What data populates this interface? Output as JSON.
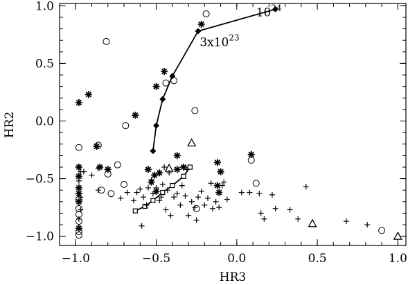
{
  "chart_data": {
    "type": "scatter",
    "xlabel": "HR3",
    "ylabel": "HR2",
    "xlim": [
      -1.1,
      1.05
    ],
    "ylim": [
      -1.08,
      1.02
    ],
    "grid": false,
    "xticks": [
      -1.0,
      -0.5,
      0.0,
      0.5,
      1.0
    ],
    "xtick_labels": [
      "−1.0",
      "−0.5",
      "0.0",
      "0.5",
      "1.0"
    ],
    "yticks": [
      -1.0,
      -0.5,
      0.0,
      0.5,
      1.0
    ],
    "ytick_labels": [
      "−1.0",
      "−0.5",
      "0.0",
      "0.5",
      "1.0"
    ],
    "annotations": [
      {
        "text": "3x10",
        "sup": "23",
        "x": -0.23,
        "y": 0.65
      },
      {
        "text": "10",
        "sup": "24",
        "x": 0.12,
        "y": 0.91
      }
    ],
    "series": [
      {
        "marker": "diamond-line",
        "values": [
          {
            "x": -0.52,
            "y": -0.26
          },
          {
            "x": -0.5,
            "y": -0.04
          },
          {
            "x": -0.46,
            "y": 0.19
          },
          {
            "x": -0.4,
            "y": 0.39
          },
          {
            "x": -0.24,
            "y": 0.78
          },
          {
            "x": 0.24,
            "y": 0.97
          }
        ]
      },
      {
        "marker": "square-line",
        "values": [
          {
            "x": -0.63,
            "y": -0.78
          },
          {
            "x": -0.57,
            "y": -0.74
          },
          {
            "x": -0.52,
            "y": -0.69
          },
          {
            "x": -0.46,
            "y": -0.62
          },
          {
            "x": -0.4,
            "y": -0.56
          },
          {
            "x": -0.33,
            "y": -0.48
          },
          {
            "x": -0.29,
            "y": -0.4
          }
        ]
      },
      {
        "marker": "asterisk",
        "values": [
          {
            "x": -0.98,
            "y": 0.16
          },
          {
            "x": -0.92,
            "y": 0.23
          },
          {
            "x": -0.5,
            "y": 0.3
          },
          {
            "x": -0.45,
            "y": 0.43
          },
          {
            "x": -0.22,
            "y": 0.84
          },
          {
            "x": -0.63,
            "y": 0.05
          },
          {
            "x": -0.87,
            "y": -0.22
          },
          {
            "x": -0.98,
            "y": -0.4
          },
          {
            "x": -0.98,
            "y": -0.48
          },
          {
            "x": -0.98,
            "y": -0.58
          },
          {
            "x": -0.98,
            "y": -0.63
          },
          {
            "x": -0.98,
            "y": -0.7
          },
          {
            "x": -0.98,
            "y": -0.93
          },
          {
            "x": -0.85,
            "y": -0.4
          },
          {
            "x": -0.8,
            "y": -0.42
          },
          {
            "x": -0.55,
            "y": -0.42
          },
          {
            "x": -0.53,
            "y": -0.53
          },
          {
            "x": -0.51,
            "y": -0.47
          },
          {
            "x": -0.48,
            "y": -0.45
          },
          {
            "x": -0.5,
            "y": -0.61
          },
          {
            "x": -0.37,
            "y": -0.3
          },
          {
            "x": -0.37,
            "y": -0.42
          },
          {
            "x": -0.12,
            "y": -0.36
          },
          {
            "x": -0.12,
            "y": -0.56
          },
          {
            "x": -0.11,
            "y": -0.62
          },
          {
            "x": -0.1,
            "y": -0.44
          },
          {
            "x": 0.09,
            "y": -0.29
          },
          {
            "x": -0.33,
            "y": -0.4
          }
        ]
      },
      {
        "marker": "circle",
        "values": [
          {
            "x": -0.81,
            "y": 0.69
          },
          {
            "x": -0.19,
            "y": 0.93
          },
          {
            "x": -0.44,
            "y": 0.33
          },
          {
            "x": -0.39,
            "y": 0.35
          },
          {
            "x": -0.26,
            "y": 0.09
          },
          {
            "x": -0.69,
            "y": -0.04
          },
          {
            "x": -0.98,
            "y": -0.23
          },
          {
            "x": -0.86,
            "y": -0.21
          },
          {
            "x": -0.8,
            "y": -0.46
          },
          {
            "x": -0.74,
            "y": -0.38
          },
          {
            "x": -0.7,
            "y": -0.55
          },
          {
            "x": -0.98,
            "y": -0.68
          },
          {
            "x": -0.98,
            "y": -0.76
          },
          {
            "x": -0.98,
            "y": -0.81
          },
          {
            "x": -0.98,
            "y": -0.87
          },
          {
            "x": -0.98,
            "y": -0.96
          },
          {
            "x": -0.98,
            "y": -0.99
          },
          {
            "x": 0.09,
            "y": -0.34
          },
          {
            "x": 0.12,
            "y": -0.54
          },
          {
            "x": -0.25,
            "y": -0.76
          },
          {
            "x": 0.9,
            "y": -0.95
          },
          {
            "x": -0.78,
            "y": -0.63
          },
          {
            "x": -0.84,
            "y": -0.6
          }
        ]
      },
      {
        "marker": "plus",
        "values": [
          {
            "x": -0.97,
            "y": -0.44
          },
          {
            "x": -0.95,
            "y": -0.44
          },
          {
            "x": -0.9,
            "y": -0.47
          },
          {
            "x": -0.98,
            "y": -0.52
          },
          {
            "x": -0.98,
            "y": -0.85
          },
          {
            "x": -0.97,
            "y": -0.77
          },
          {
            "x": -0.97,
            "y": -0.66
          },
          {
            "x": -0.86,
            "y": -0.41
          },
          {
            "x": -0.86,
            "y": -0.6
          },
          {
            "x": -0.72,
            "y": -0.67
          },
          {
            "x": -0.68,
            "y": -0.62
          },
          {
            "x": -0.64,
            "y": -0.69
          },
          {
            "x": -0.62,
            "y": -0.62
          },
          {
            "x": -0.6,
            "y": -0.59
          },
          {
            "x": -0.58,
            "y": -0.66
          },
          {
            "x": -0.56,
            "y": -0.73
          },
          {
            "x": -0.55,
            "y": -0.58
          },
          {
            "x": -0.53,
            "y": -0.51
          },
          {
            "x": -0.52,
            "y": -0.63
          },
          {
            "x": -0.5,
            "y": -0.58
          },
          {
            "x": -0.48,
            "y": -0.69
          },
          {
            "x": -0.47,
            "y": -0.66
          },
          {
            "x": -0.46,
            "y": -0.55
          },
          {
            "x": -0.44,
            "y": -0.77
          },
          {
            "x": -0.43,
            "y": -0.6
          },
          {
            "x": -0.41,
            "y": -0.82
          },
          {
            "x": -0.39,
            "y": -0.66
          },
          {
            "x": -0.37,
            "y": -0.63
          },
          {
            "x": -0.35,
            "y": -0.73
          },
          {
            "x": -0.34,
            "y": -0.56
          },
          {
            "x": -0.32,
            "y": -0.65
          },
          {
            "x": -0.3,
            "y": -0.82
          },
          {
            "x": -0.28,
            "y": -0.7
          },
          {
            "x": -0.26,
            "y": -0.75
          },
          {
            "x": -0.24,
            "y": -0.66
          },
          {
            "x": -0.22,
            "y": -0.61
          },
          {
            "x": -0.2,
            "y": -0.73
          },
          {
            "x": -0.18,
            "y": -0.67
          },
          {
            "x": -0.16,
            "y": -0.54
          },
          {
            "x": -0.15,
            "y": -0.76
          },
          {
            "x": -0.13,
            "y": -0.7
          },
          {
            "x": -0.11,
            "y": -0.75
          },
          {
            "x": -0.09,
            "y": -0.56
          },
          {
            "x": -0.08,
            "y": -0.53
          },
          {
            "x": -0.06,
            "y": -0.68
          },
          {
            "x": -0.59,
            "y": -0.91
          },
          {
            "x": -0.45,
            "y": -0.4
          },
          {
            "x": -0.42,
            "y": -0.45
          },
          {
            "x": -0.31,
            "y": -0.42
          },
          {
            "x": -0.25,
            "y": -0.86
          },
          {
            "x": 0.03,
            "y": -0.62
          },
          {
            "x": 0.08,
            "y": -0.62
          },
          {
            "x": 0.14,
            "y": -0.63
          },
          {
            "x": 0.15,
            "y": -0.8
          },
          {
            "x": 0.17,
            "y": -0.85
          },
          {
            "x": 0.22,
            "y": -0.64
          },
          {
            "x": 0.24,
            "y": -0.76
          },
          {
            "x": 0.33,
            "y": -0.77
          },
          {
            "x": 0.38,
            "y": -0.85
          },
          {
            "x": 0.43,
            "y": -0.57
          },
          {
            "x": 0.68,
            "y": -0.87
          },
          {
            "x": 0.81,
            "y": -0.9
          }
        ]
      },
      {
        "marker": "triangle",
        "values": [
          {
            "x": -0.28,
            "y": -0.19
          },
          {
            "x": -0.42,
            "y": -0.41
          },
          {
            "x": 0.47,
            "y": -0.89
          },
          {
            "x": 1.0,
            "y": -1.0
          }
        ]
      }
    ]
  }
}
